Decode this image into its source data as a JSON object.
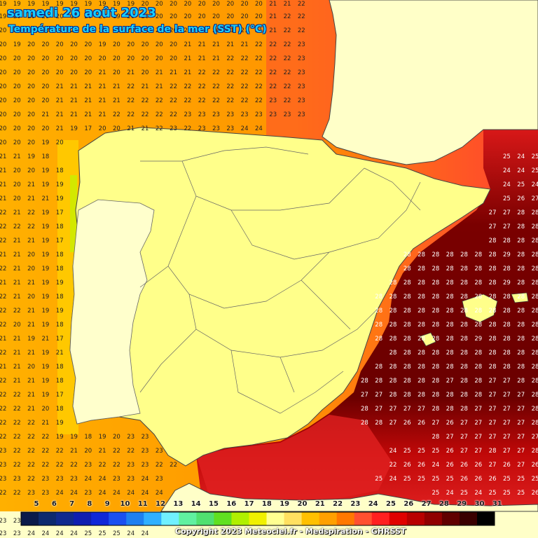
{
  "header": {
    "title": "samedi 26 août 2023",
    "subtitle": "Température de la surface de la mer (SST) (°C)"
  },
  "footer": {
    "copyright": "Copyright 2023 Meteociel.fr - Medspiration - GHRSST"
  },
  "legend": {
    "labels": [
      "5",
      "6",
      "7",
      "8",
      "9",
      "10",
      "11",
      "12",
      "13",
      "14",
      "15",
      "16",
      "17",
      "18",
      "19",
      "20",
      "21",
      "22",
      "23",
      "24",
      "25",
      "26",
      "27",
      "28",
      "29",
      "30",
      "31"
    ],
    "colors": [
      "#0a1a4a",
      "#0d2a6e",
      "#102a8e",
      "#0f1fb0",
      "#1028d8",
      "#1a50f0",
      "#1e80f0",
      "#30b0ff",
      "#70f0ff",
      "#60f0a0",
      "#50e070",
      "#60e020",
      "#b0f000",
      "#f0f000",
      "#ffff90",
      "#ffe060",
      "#ffc000",
      "#ffa000",
      "#ff7800",
      "#ff5030",
      "#ff2020",
      "#e00000",
      "#b80000",
      "#900000",
      "#600000",
      "#3a0000",
      "#000000"
    ]
  },
  "map_data": {
    "type": "sea-surface-temperature-grid",
    "unit": "°C",
    "rows": [
      {
        "y": 4,
        "values": [
          19,
          19,
          19,
          19,
          19,
          19,
          19,
          19,
          19,
          19,
          20,
          20,
          20,
          20,
          20,
          20,
          20,
          20,
          20,
          21,
          21,
          22
        ]
      },
      {
        "y": 22,
        "values": [
          19,
          20,
          20,
          20,
          20,
          19,
          20,
          20,
          19,
          20,
          20,
          20,
          20,
          20,
          20,
          20,
          20,
          20,
          20,
          21,
          22,
          22
        ]
      },
      {
        "y": 42,
        "values": [
          20,
          20,
          20,
          20,
          20,
          20,
          20,
          20,
          20,
          20,
          20,
          20,
          20,
          20,
          20,
          20,
          21,
          21,
          21,
          21,
          22,
          22
        ]
      },
      {
        "y": 62,
        "values": [
          20,
          19,
          20,
          20,
          20,
          20,
          20,
          19,
          20,
          20,
          20,
          20,
          20,
          21,
          21,
          21,
          21,
          21,
          22,
          22,
          22,
          23
        ]
      },
      {
        "y": 82,
        "values": [
          20,
          20,
          20,
          20,
          20,
          20,
          20,
          20,
          20,
          20,
          20,
          20,
          20,
          21,
          21,
          21,
          22,
          22,
          22,
          22,
          22,
          23
        ]
      },
      {
        "y": 102,
        "values": [
          20,
          20,
          20,
          20,
          20,
          20,
          20,
          21,
          20,
          21,
          20,
          21,
          21,
          21,
          22,
          22,
          22,
          22,
          22,
          22,
          22,
          23
        ]
      },
      {
        "y": 122,
        "values": [
          20,
          20,
          20,
          20,
          21,
          21,
          21,
          21,
          21,
          22,
          21,
          21,
          22,
          22,
          22,
          22,
          22,
          22,
          22,
          22,
          22,
          23
        ]
      },
      {
        "y": 142,
        "values": [
          20,
          20,
          20,
          20,
          21,
          21,
          21,
          21,
          21,
          22,
          22,
          22,
          22,
          22,
          22,
          22,
          22,
          22,
          22,
          23,
          22,
          23
        ]
      },
      {
        "y": 162,
        "values": [
          20,
          20,
          20,
          21,
          21,
          21,
          21,
          21,
          22,
          22,
          22,
          22,
          22,
          23,
          23,
          23,
          23,
          23,
          23,
          23,
          23,
          23
        ]
      },
      {
        "y": 182,
        "values": [
          20,
          20,
          20,
          20,
          21,
          19,
          17,
          20,
          20,
          21,
          21,
          22,
          23,
          22,
          23,
          23,
          23,
          24,
          24
        ]
      },
      {
        "y": 202,
        "values": [
          20,
          20,
          20,
          19,
          20
        ]
      },
      {
        "y": 222,
        "values": [
          21,
          21,
          19,
          18
        ]
      },
      {
        "y": 242,
        "values": [
          21,
          20,
          20,
          19,
          18
        ]
      },
      {
        "y": 262,
        "values": [
          21,
          20,
          21,
          19,
          19
        ]
      },
      {
        "y": 282,
        "values": [
          21,
          20,
          21,
          21,
          19
        ]
      },
      {
        "y": 302,
        "values": [
          22,
          21,
          22,
          19,
          17
        ]
      },
      {
        "y": 322,
        "values": [
          22,
          22,
          22,
          19,
          18
        ]
      },
      {
        "y": 342,
        "values": [
          22,
          21,
          21,
          19,
          17
        ]
      },
      {
        "y": 362,
        "values": [
          21,
          21,
          20,
          19,
          18
        ]
      },
      {
        "y": 382,
        "values": [
          22,
          21,
          20,
          19,
          18
        ]
      },
      {
        "y": 402,
        "values": [
          21,
          21,
          21,
          19,
          19
        ]
      },
      {
        "y": 422,
        "values": [
          22,
          21,
          20,
          19,
          18
        ]
      },
      {
        "y": 442,
        "values": [
          22,
          22,
          21,
          19,
          19
        ]
      },
      {
        "y": 462,
        "values": [
          22,
          20,
          21,
          19,
          18
        ]
      },
      {
        "y": 482,
        "values": [
          21,
          21,
          19,
          21,
          17
        ]
      },
      {
        "y": 502,
        "values": [
          22,
          21,
          21,
          19,
          21
        ]
      },
      {
        "y": 522,
        "values": [
          21,
          21,
          20,
          19,
          18
        ]
      },
      {
        "y": 542,
        "values": [
          22,
          21,
          21,
          19,
          18
        ]
      },
      {
        "y": 562,
        "values": [
          22,
          22,
          21,
          19,
          17
        ]
      },
      {
        "y": 582,
        "values": [
          22,
          22,
          21,
          20,
          18
        ]
      },
      {
        "y": 602,
        "values": [
          22,
          22,
          22,
          21,
          19
        ]
      },
      {
        "y": 622,
        "values": [
          22,
          22,
          22,
          22,
          19,
          19,
          18,
          19,
          20,
          23,
          23
        ]
      },
      {
        "y": 642,
        "values": [
          23,
          22,
          22,
          22,
          22,
          21,
          20,
          21,
          22,
          22,
          23,
          23
        ]
      },
      {
        "y": 662,
        "values": [
          23,
          22,
          22,
          22,
          22,
          22,
          23,
          22,
          22,
          23,
          23,
          22,
          22
        ]
      },
      {
        "y": 682,
        "values": [
          23,
          23,
          22,
          23,
          23,
          23,
          24,
          24,
          23,
          23,
          24,
          23
        ]
      },
      {
        "y": 702,
        "values": [
          22,
          22,
          23,
          23,
          24,
          24,
          23,
          24,
          24,
          24,
          24,
          24
        ]
      },
      {
        "y": 742,
        "values": [
          23,
          23
        ]
      },
      {
        "y": 760,
        "values": [
          23,
          23,
          24,
          24,
          24,
          24,
          25,
          25,
          25,
          24,
          24
        ]
      }
    ],
    "east_rows": [
      {
        "y": 222,
        "values": [
          25,
          24,
          25
        ]
      },
      {
        "y": 242,
        "values": [
          24,
          24,
          25
        ]
      },
      {
        "y": 262,
        "values": [
          24,
          25,
          24
        ]
      },
      {
        "y": 282,
        "values": [
          25,
          26,
          27
        ]
      },
      {
        "y": 302,
        "values": [
          27,
          27,
          28,
          28
        ]
      },
      {
        "y": 322,
        "values": [
          27,
          27,
          28,
          28
        ]
      },
      {
        "y": 342,
        "values": [
          28,
          28,
          28,
          28
        ]
      },
      {
        "y": 362,
        "values": [
          28,
          28,
          28,
          28,
          28,
          28,
          28,
          29,
          28,
          28
        ]
      },
      {
        "y": 382,
        "values": [
          28,
          28,
          28,
          28,
          28,
          28,
          28,
          28,
          28,
          28
        ]
      },
      {
        "y": 402,
        "values": [
          28,
          28,
          28,
          28,
          28,
          28,
          28,
          28,
          29,
          28,
          28
        ]
      },
      {
        "y": 422,
        "values": [
          28,
          28,
          28,
          28,
          28,
          28,
          28,
          28,
          28,
          28,
          28,
          28
        ]
      },
      {
        "y": 442,
        "values": [
          28,
          28,
          28,
          28,
          28,
          28,
          28,
          28,
          28,
          28,
          28,
          28
        ]
      },
      {
        "y": 462,
        "values": [
          28,
          28,
          28,
          28,
          28,
          28,
          28,
          28,
          28,
          28,
          28,
          28
        ]
      },
      {
        "y": 482,
        "values": [
          28,
          28,
          28,
          28,
          28,
          28,
          28,
          29,
          28,
          28,
          28,
          28
        ]
      },
      {
        "y": 502,
        "values": [
          28,
          28,
          28,
          28,
          28,
          28,
          28,
          28,
          28,
          28,
          28
        ]
      },
      {
        "y": 522,
        "values": [
          28,
          28,
          28,
          28,
          28,
          28,
          28,
          28,
          28,
          28,
          28,
          28
        ]
      },
      {
        "y": 542,
        "values": [
          28,
          28,
          28,
          28,
          28,
          28,
          27,
          28,
          28,
          27,
          27,
          28,
          28
        ]
      },
      {
        "y": 562,
        "values": [
          27,
          27,
          28,
          28,
          28,
          28,
          28,
          28,
          28,
          27,
          27,
          27,
          28
        ]
      },
      {
        "y": 582,
        "values": [
          28,
          27,
          27,
          27,
          27,
          28,
          28,
          28,
          27,
          27,
          27,
          27,
          28
        ]
      },
      {
        "y": 602,
        "values": [
          28,
          28,
          27,
          26,
          26,
          27,
          26,
          27,
          27,
          27,
          27,
          27,
          28
        ]
      },
      {
        "y": 622,
        "values": [
          28,
          27,
          27,
          27,
          27,
          27,
          27,
          27
        ]
      },
      {
        "y": 642,
        "values": [
          24,
          25,
          25,
          25,
          26,
          27,
          27,
          28,
          27,
          27,
          28
        ]
      },
      {
        "y": 662,
        "values": [
          22,
          26,
          26,
          24,
          26,
          26,
          26,
          27,
          26,
          27,
          26
        ]
      },
      {
        "y": 682,
        "values": [
          25,
          24,
          25,
          25,
          25,
          25,
          26,
          26,
          26,
          25,
          25,
          25
        ]
      },
      {
        "y": 702,
        "values": [
          25,
          24,
          25,
          24,
          25,
          25,
          25,
          26
        ]
      }
    ]
  }
}
